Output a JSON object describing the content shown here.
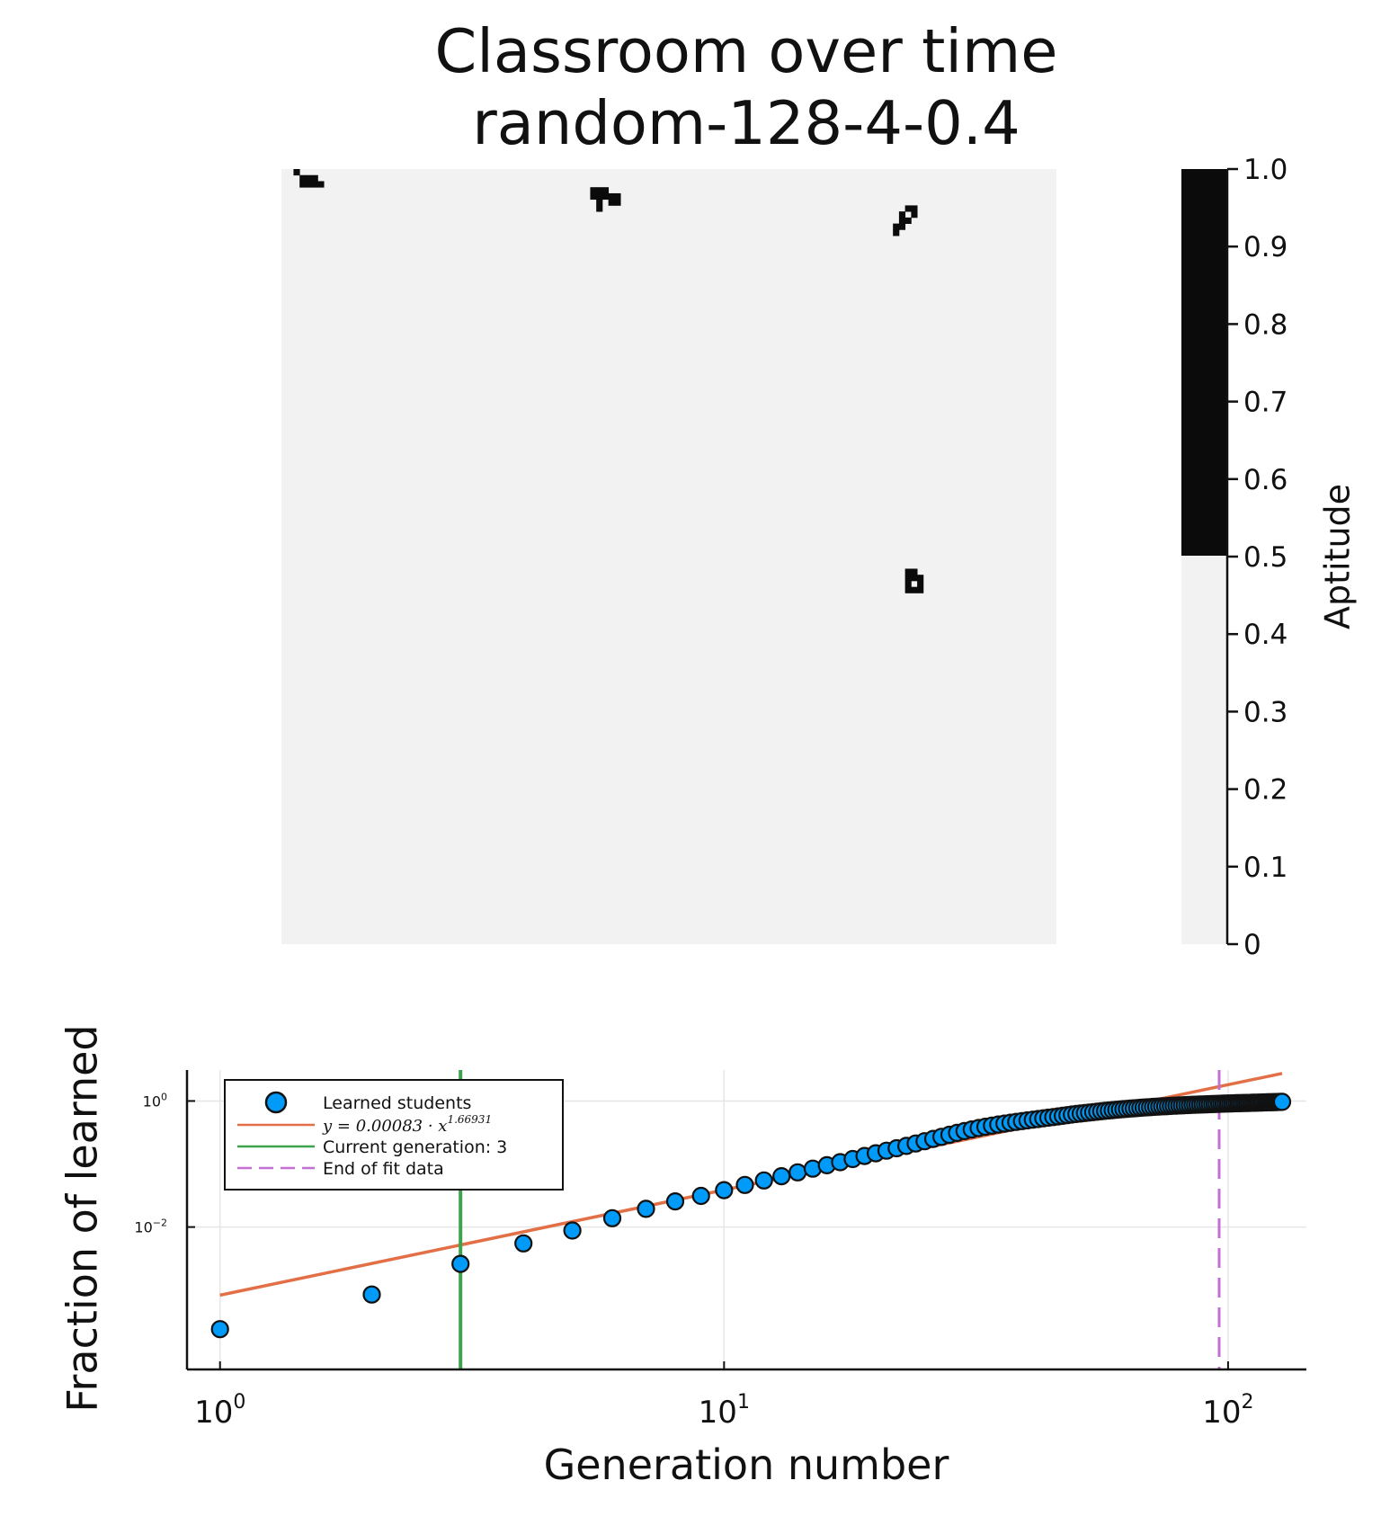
{
  "figure": {
    "title_line1": "Classroom over time",
    "title_line2": "random-128-4-0.4"
  },
  "chart_data": [
    {
      "type": "heatmap",
      "grid_size": 128,
      "colorbar": {
        "label": "Aptitude",
        "ticks": [
          "0",
          "0.1",
          "0.2",
          "0.3",
          "0.4",
          "0.5",
          "0.6",
          "0.7",
          "0.8",
          "0.9",
          "1.0"
        ],
        "range": [
          0,
          1
        ],
        "threshold": 0.5,
        "colors": {
          "low": "#f2f2f2",
          "high": "#0b0b0b"
        }
      },
      "learned_cells": [
        [
          2,
          0
        ],
        [
          3,
          1
        ],
        [
          3,
          2
        ],
        [
          4,
          1
        ],
        [
          4,
          2
        ],
        [
          5,
          1
        ],
        [
          5,
          2
        ],
        [
          6,
          2
        ],
        [
          51,
          3
        ],
        [
          52,
          3
        ],
        [
          53,
          3
        ],
        [
          51,
          4
        ],
        [
          52,
          4
        ],
        [
          53,
          4
        ],
        [
          54,
          4
        ],
        [
          55,
          4
        ],
        [
          52,
          5
        ],
        [
          54,
          5
        ],
        [
          55,
          5
        ],
        [
          52,
          6
        ],
        [
          103,
          6
        ],
        [
          104,
          6
        ],
        [
          102,
          7
        ],
        [
          104,
          7
        ],
        [
          102,
          8
        ],
        [
          103,
          8
        ],
        [
          101,
          9
        ],
        [
          102,
          9
        ],
        [
          101,
          10
        ],
        [
          103,
          66
        ],
        [
          104,
          66
        ],
        [
          103,
          67
        ],
        [
          104,
          67
        ],
        [
          105,
          67
        ],
        [
          103,
          68
        ],
        [
          105,
          68
        ],
        [
          103,
          69
        ],
        [
          104,
          69
        ],
        [
          105,
          69
        ]
      ]
    },
    {
      "type": "scatter",
      "xlabel": "Generation number",
      "ylabel": "Fraction of learned",
      "xscale": "log10",
      "yscale": "log10",
      "xlim": [
        0.86,
        143
      ],
      "ylim": [
        5.5e-05,
        3.1
      ],
      "grid": true,
      "legend_position": "top-left",
      "x_ticks": [
        {
          "base": "10",
          "exp": "0",
          "value": 1
        },
        {
          "base": "10",
          "exp": "1",
          "value": 10
        },
        {
          "base": "10",
          "exp": "2",
          "value": 100
        }
      ],
      "y_ticks": [
        {
          "base": "10",
          "exp": "0",
          "value": 1
        },
        {
          "base": "10",
          "exp": "−2",
          "value": 0.01
        }
      ],
      "series": [
        {
          "name": "Learned students",
          "kind": "scatter",
          "color": "#009af9",
          "x_start": 1,
          "y": [
            0.00024,
            0.00085,
            0.0026,
            0.0055,
            0.0088,
            0.0138,
            0.0194,
            0.0255,
            0.0312,
            0.0385,
            0.0465,
            0.0548,
            0.064,
            0.0738,
            0.0845,
            0.0955,
            0.107,
            0.12,
            0.134,
            0.148,
            0.163,
            0.178,
            0.194,
            0.212,
            0.23,
            0.25,
            0.27,
            0.291,
            0.312,
            0.333,
            0.353,
            0.372,
            0.39,
            0.407,
            0.423,
            0.438,
            0.452,
            0.466,
            0.479,
            0.492,
            0.505,
            0.518,
            0.531,
            0.544,
            0.557,
            0.57,
            0.583,
            0.596,
            0.609,
            0.621,
            0.633,
            0.645,
            0.656,
            0.667,
            0.678,
            0.688,
            0.698,
            0.708,
            0.717,
            0.726,
            0.735,
            0.743,
            0.751,
            0.759,
            0.766,
            0.773,
            0.78,
            0.787,
            0.793,
            0.799,
            0.805,
            0.811,
            0.816,
            0.821,
            0.826,
            0.831,
            0.836,
            0.84,
            0.845,
            0.849,
            0.853,
            0.857,
            0.861,
            0.865,
            0.868,
            0.872,
            0.875,
            0.878,
            0.881,
            0.884,
            0.887,
            0.89,
            0.893,
            0.896,
            0.899,
            0.902,
            0.904,
            0.907,
            0.909,
            0.912,
            0.914,
            0.917,
            0.919,
            0.921,
            0.923,
            0.925,
            0.927,
            0.929,
            0.931,
            0.933,
            0.935,
            0.937,
            0.939,
            0.941,
            0.943,
            0.945,
            0.947,
            0.949,
            0.951,
            0.953,
            0.955,
            0.957,
            0.959,
            0.961,
            0.963,
            0.965,
            0.967,
            0.969
          ]
        },
        {
          "name": "y = 0.00083 · x^1.66931",
          "kind": "line",
          "color": "#e26f46",
          "coefficient": 0.00083,
          "exponent": 1.66931,
          "x_range": [
            1,
            128
          ]
        },
        {
          "name": "Current generation: 3",
          "kind": "vline",
          "color": "#3da44d",
          "x": 3
        },
        {
          "name": "End of fit data",
          "kind": "vline-dashed",
          "color": "#c271d2",
          "x": 96
        }
      ],
      "legend": {
        "learned": "Learned students",
        "fit_prefix": "y = 0.00083 · x",
        "fit_exp": "1.66931",
        "current": "Current generation: 3",
        "end_fit": "End of fit data"
      }
    }
  ]
}
